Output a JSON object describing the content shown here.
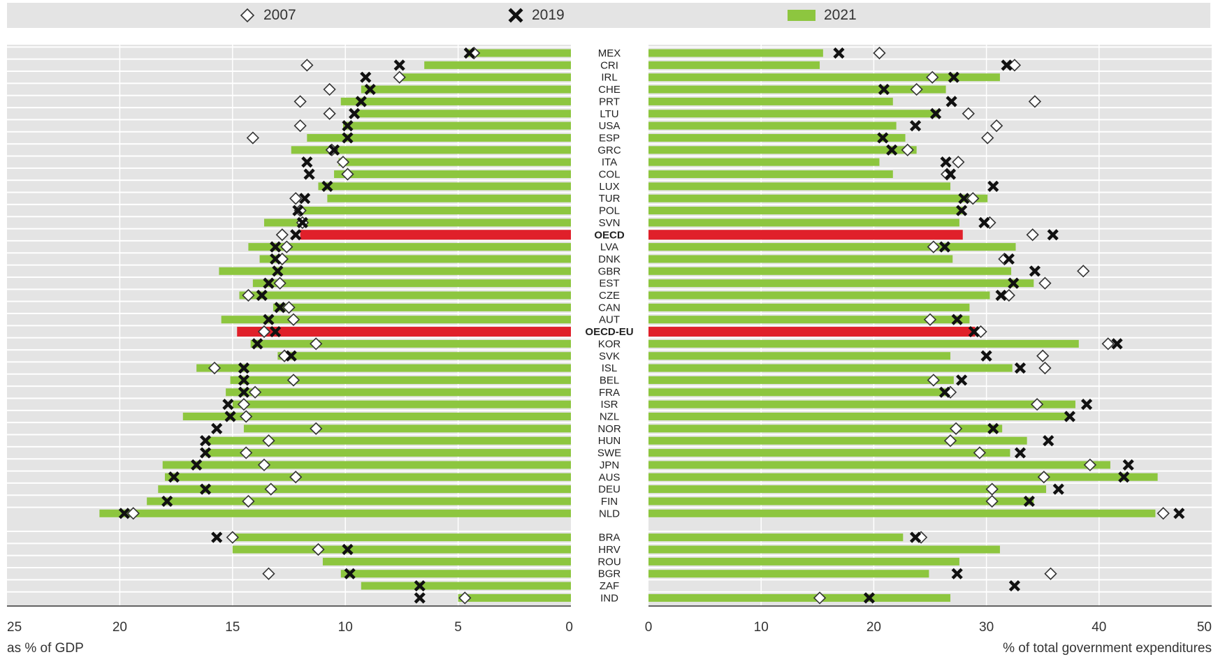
{
  "legend": {
    "item_2007": "2007",
    "item_2019": "2019",
    "item_2021": "2021"
  },
  "colors": {
    "bar_2021": "#8dc63f",
    "bar_oecd": "#e0202a",
    "panel_bg": "#e4e4e4",
    "marker_2019": "#111111",
    "marker_2007_fill": "#ffffff"
  },
  "chart_data": [
    {
      "type": "bar",
      "orientation": "horizontal",
      "xlabel": "as % of GDP",
      "xlim": [
        25,
        0
      ],
      "xticks": [
        25,
        20,
        15,
        10,
        5,
        0
      ],
      "markers": {
        "2007": "diamond",
        "2019": "cross",
        "2021": "bar"
      },
      "categories": [
        "MEX",
        "CRI",
        "IRL",
        "CHE",
        "PRT",
        "LTU",
        "USA",
        "ESP",
        "GRC",
        "ITA",
        "COL",
        "LUX",
        "TUR",
        "POL",
        "SVN",
        "OECD",
        "LVA",
        "DNK",
        "GBR",
        "EST",
        "CZE",
        "CAN",
        "AUT",
        "OECD-EU",
        "KOR",
        "SVK",
        "ISL",
        "BEL",
        "FRA",
        "ISR",
        "NZL",
        "NOR",
        "HUN",
        "SWE",
        "JPN",
        "AUS",
        "DEU",
        "FIN",
        "NLD",
        "BRA",
        "HRV",
        "ROU",
        "BGR",
        "ZAF",
        "IND"
      ],
      "highlight": [
        "OECD",
        "OECD-EU"
      ],
      "series": [
        {
          "name": "2021",
          "values": [
            4.6,
            6.5,
            7.5,
            9.3,
            10.2,
            9.5,
            10.1,
            11.7,
            12.4,
            10.3,
            10.5,
            11.2,
            10.8,
            12.0,
            13.6,
            12.0,
            14.3,
            13.8,
            15.6,
            14.1,
            14.7,
            13.2,
            15.5,
            14.8,
            14.2,
            13.0,
            16.6,
            15.1,
            15.3,
            15.0,
            17.2,
            14.5,
            16.1,
            16.2,
            18.1,
            18.0,
            18.3,
            18.8,
            20.9,
            15.1,
            15.0,
            11.0,
            10.2,
            9.3,
            5.0
          ]
        },
        {
          "name": "2019",
          "values": [
            4.5,
            7.6,
            9.1,
            8.9,
            9.3,
            9.6,
            9.9,
            9.9,
            10.5,
            11.7,
            11.6,
            10.8,
            11.8,
            12.1,
            11.9,
            12.2,
            13.1,
            13.1,
            13.0,
            13.4,
            13.7,
            12.9,
            13.4,
            13.1,
            13.9,
            12.4,
            14.5,
            14.5,
            14.5,
            15.2,
            15.1,
            15.7,
            16.2,
            16.2,
            16.6,
            17.6,
            16.2,
            17.9,
            19.8,
            15.7,
            9.9,
            null,
            9.8,
            6.7,
            6.7
          ]
        },
        {
          "name": "2007",
          "values": [
            4.3,
            11.7,
            7.6,
            10.7,
            12.0,
            10.7,
            12.0,
            14.1,
            10.6,
            10.1,
            9.9,
            null,
            12.2,
            12.0,
            11.9,
            12.8,
            12.6,
            12.8,
            null,
            12.9,
            14.3,
            12.5,
            12.3,
            13.6,
            11.3,
            12.7,
            15.8,
            12.3,
            14.0,
            14.5,
            14.4,
            11.3,
            13.4,
            14.4,
            13.6,
            12.2,
            13.3,
            14.3,
            19.4,
            15.0,
            11.2,
            null,
            13.4,
            null,
            4.7
          ]
        }
      ]
    },
    {
      "type": "bar",
      "orientation": "horizontal",
      "xlabel": "% of total government expenditures",
      "xlim": [
        0,
        50
      ],
      "xticks": [
        0,
        10,
        20,
        30,
        40,
        50
      ],
      "markers": {
        "2007": "diamond",
        "2019": "cross",
        "2021": "bar"
      },
      "categories": [
        "MEX",
        "CRI",
        "IRL",
        "CHE",
        "PRT",
        "LTU",
        "USA",
        "ESP",
        "GRC",
        "ITA",
        "COL",
        "LUX",
        "TUR",
        "POL",
        "SVN",
        "OECD",
        "LVA",
        "DNK",
        "GBR",
        "EST",
        "CZE",
        "CAN",
        "AUT",
        "OECD-EU",
        "KOR",
        "SVK",
        "ISL",
        "BEL",
        "FRA",
        "ISR",
        "NZL",
        "NOR",
        "HUN",
        "SWE",
        "JPN",
        "AUS",
        "DEU",
        "FIN",
        "NLD",
        "BRA",
        "HRV",
        "ROU",
        "BGR",
        "ZAF",
        "IND"
      ],
      "highlight": [
        "OECD",
        "OECD-EU"
      ],
      "series": [
        {
          "name": "2021",
          "values": [
            15.5,
            15.2,
            31.2,
            26.4,
            21.7,
            25.8,
            22.0,
            22.8,
            23.8,
            20.5,
            21.7,
            26.8,
            30.1,
            27.9,
            27.6,
            27.9,
            32.6,
            27.0,
            32.2,
            34.2,
            30.3,
            28.5,
            28.5,
            29.0,
            38.2,
            26.8,
            32.3,
            27.1,
            26.8,
            37.9,
            37.3,
            31.4,
            33.6,
            32.1,
            41.0,
            45.2,
            35.3,
            34.2,
            45.0,
            22.6,
            31.2,
            27.6,
            24.9,
            null,
            26.8
          ]
        },
        {
          "name": "2019",
          "values": [
            16.9,
            31.8,
            27.1,
            20.9,
            26.9,
            25.5,
            23.7,
            20.8,
            21.6,
            26.4,
            26.8,
            30.6,
            28.0,
            27.8,
            29.8,
            35.9,
            26.3,
            32.0,
            34.3,
            32.4,
            31.3,
            null,
            27.4,
            28.9,
            41.6,
            30.0,
            33.0,
            27.8,
            26.3,
            38.9,
            37.4,
            30.6,
            35.5,
            33.0,
            42.6,
            42.2,
            36.4,
            33.8,
            47.1,
            23.7,
            null,
            null,
            27.4,
            32.5,
            19.6
          ]
        },
        {
          "name": "2007",
          "values": [
            20.5,
            32.5,
            25.2,
            23.8,
            34.3,
            28.4,
            30.9,
            30.1,
            23.0,
            27.5,
            26.5,
            null,
            28.8,
            null,
            30.3,
            34.1,
            25.3,
            31.6,
            38.6,
            35.2,
            32.0,
            null,
            25.0,
            29.5,
            40.8,
            35.0,
            35.2,
            25.3,
            26.8,
            34.5,
            null,
            27.3,
            26.8,
            29.4,
            39.2,
            35.1,
            30.5,
            30.5,
            45.7,
            24.2,
            null,
            null,
            35.7,
            null,
            15.2
          ]
        }
      ]
    }
  ]
}
